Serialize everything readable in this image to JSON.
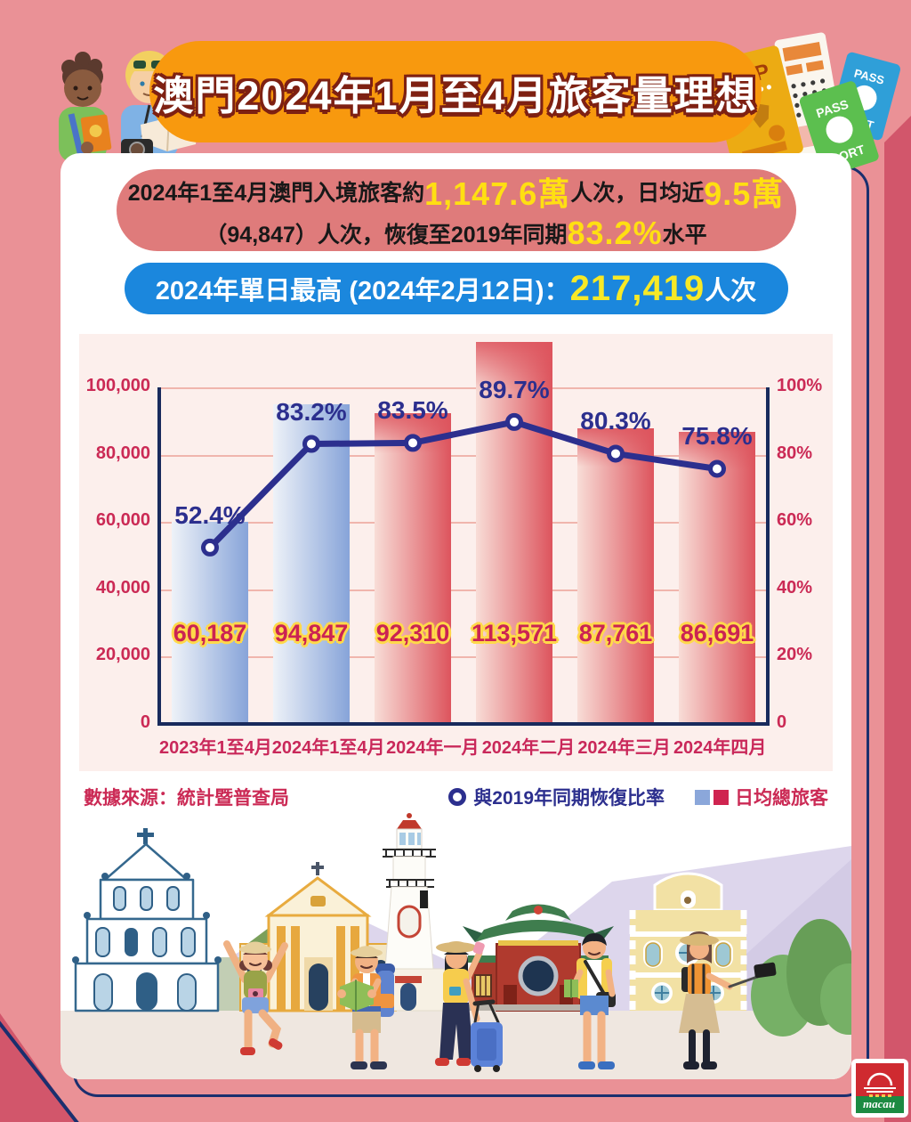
{
  "header": {
    "title": "澳門2024年1月至4月旅客量理想"
  },
  "summary_pill": {
    "line1": [
      {
        "t": "2024年1至4月澳門入境旅客約",
        "hl": false
      },
      {
        "t": "1,147.6萬",
        "hl": true
      },
      {
        "t": "人次，日均近",
        "hl": false
      },
      {
        "t": "9.5萬",
        "hl": true
      }
    ],
    "line2": [
      {
        "t": "（94,847）人次，恢復至2019年同期",
        "hl": false
      },
      {
        "t": "83.2%",
        "hl": true
      },
      {
        "t": "水平",
        "hl": false
      }
    ]
  },
  "record_pill": {
    "segments": [
      {
        "t": "2024年單日最高 (2024年2月12日)：",
        "hl": false
      },
      {
        "t": "217,419",
        "hl": true
      },
      {
        "t": "人次",
        "hl": false
      }
    ]
  },
  "chart_data": {
    "type": "bar+line combo",
    "categories": [
      "2023年1至4月",
      "2024年1至4月",
      "2024年一月",
      "2024年二月",
      "2024年三月",
      "2024年四月"
    ],
    "series": [
      {
        "name": "日均總旅客",
        "type": "bar",
        "values": [
          60187,
          94847,
          92310,
          113571,
          87761,
          86691
        ],
        "labels": [
          "60,187",
          "94,847",
          "92,310",
          "113,571",
          "87,761",
          "86,691"
        ],
        "styles": [
          "blue",
          "blue",
          "red",
          "red",
          "red",
          "red"
        ]
      },
      {
        "name": "與2019年同期恢復比率",
        "type": "line",
        "values": [
          52.4,
          83.2,
          83.5,
          89.7,
          80.3,
          75.8
        ],
        "labels": [
          "52.4%",
          "83.2%",
          "83.5%",
          "89.7%",
          "80.3%",
          "75.8%"
        ]
      }
    ],
    "left_axis": {
      "max": 100000,
      "ticks": [
        "100,000",
        "80,000",
        "60,000",
        "40,000",
        "20,000",
        "0"
      ]
    },
    "right_axis": {
      "max": 100,
      "ticks": [
        "100%",
        "80%",
        "60%",
        "40%",
        "20%",
        "0"
      ]
    },
    "grid": true,
    "legend_position": "bottom-right"
  },
  "legend": {
    "source": "數據來源：統計暨普查局",
    "line_label": "與2019年同期恢復比率",
    "bar_label": "日均總旅客"
  },
  "decor": {
    "map": "MAP",
    "passport_top": "PASS",
    "passport_bottom": "PORT",
    "logo_text": "macau"
  },
  "colors": {
    "background": "#ea9196",
    "accent_orange": "#f8990e",
    "summary_pill": "#df7b7b",
    "record_pill": "#1b87dd",
    "highlight_yellow": "#ffdf12",
    "crimson_text": "#cb2a55",
    "line_indigo": "#2c2f8e",
    "bar_blue": "#87a4d9",
    "bar_red": "#dd545d",
    "navy_axis": "#182a5c"
  }
}
